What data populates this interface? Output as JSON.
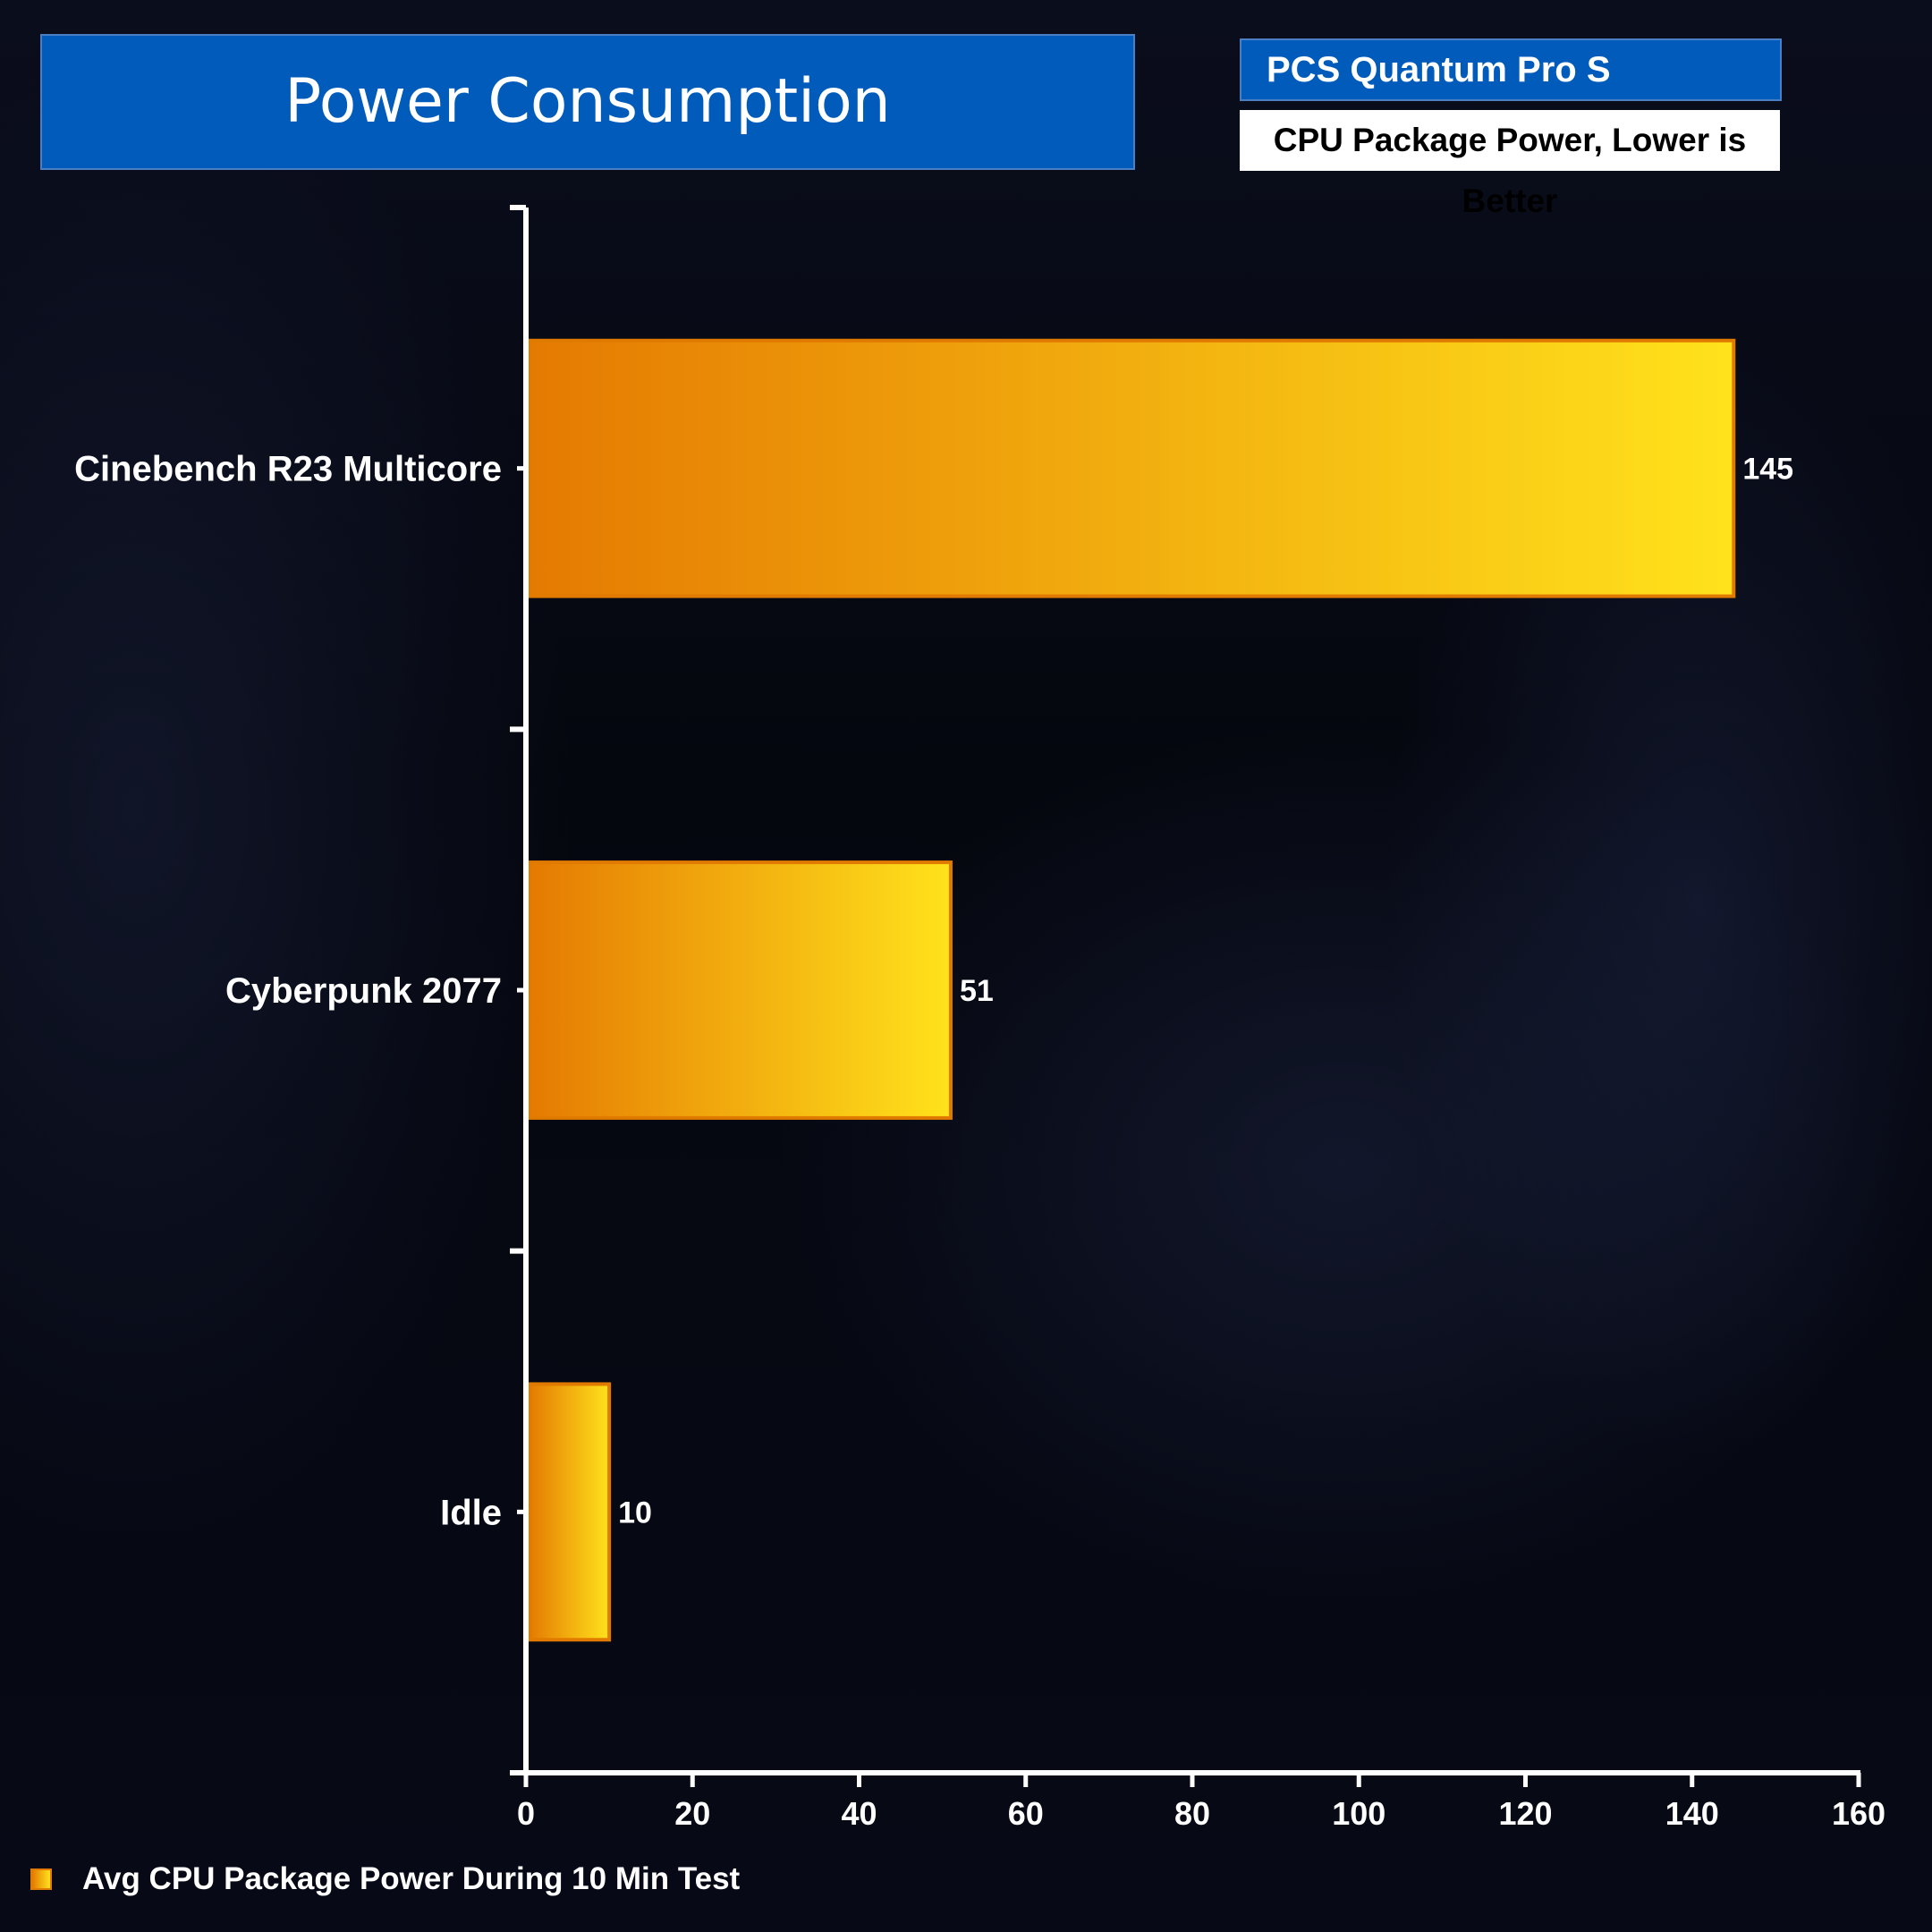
{
  "header": {
    "title": "Power Consumption",
    "subtitle": "PCS Quantum Pro S",
    "note": "CPU Package Power, Lower is Better"
  },
  "chart_data": {
    "type": "bar",
    "orientation": "horizontal",
    "categories": [
      "Cinebench R23 Multicore",
      "Cyberpunk 2077",
      "Idle"
    ],
    "series": [
      {
        "name": "Avg CPU Package Power During 10 Min Test",
        "values": [
          145,
          51,
          10
        ]
      }
    ],
    "xlim": [
      0,
      160
    ],
    "xticks": [
      0,
      20,
      40,
      60,
      80,
      100,
      120,
      140,
      160
    ],
    "title": "Power Consumption",
    "xlabel": "",
    "ylabel": "",
    "grid": false,
    "legend_position": "bottom-left",
    "colors": {
      "bar_start": "#e57a02",
      "bar_end": "#ffe21c",
      "bar_border": "#e07a00",
      "axis": "#ffffff"
    }
  }
}
